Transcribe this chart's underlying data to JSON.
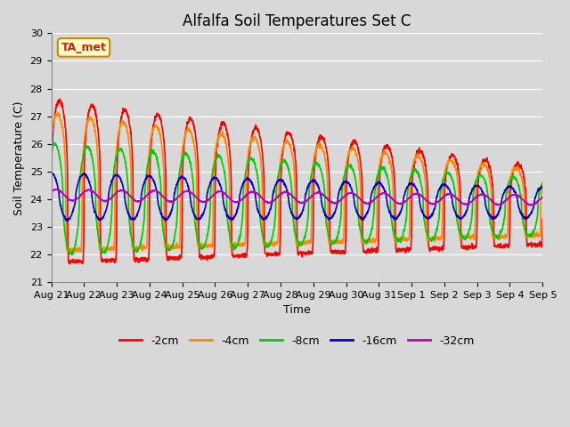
{
  "title": "Alfalfa Soil Temperatures Set C",
  "xlabel": "Time",
  "ylabel": "Soil Temperature (C)",
  "ylim": [
    21.0,
    30.0
  ],
  "yticks": [
    21.0,
    22.0,
    23.0,
    24.0,
    25.0,
    26.0,
    27.0,
    28.0,
    29.0,
    30.0
  ],
  "background_color": "#d8d8d8",
  "plot_bg_color": "#d8d8d8",
  "xtick_labels": [
    "Aug 21",
    "Aug 22",
    "Aug 23",
    "Aug 24",
    "Aug 25",
    "Aug 26",
    "Aug 27",
    "Aug 28",
    "Aug 29",
    "Aug 30",
    "Aug 31",
    "Sep 1",
    "Sep 2",
    "Sep 3",
    "Sep 4",
    "Sep 5"
  ],
  "series_colors": [
    "#ff0000",
    "#ff8800",
    "#00cc00",
    "#0000cc",
    "#bb00bb"
  ],
  "series_labels": [
    "-2cm",
    "-4cm",
    "-8cm",
    "-16cm",
    "-32cm"
  ],
  "line_widths": [
    1.2,
    1.2,
    1.2,
    1.2,
    1.2
  ],
  "annotation_text": "TA_met",
  "annotation_color": "#cc2200",
  "annotation_bg": "#ffffcc",
  "annotation_border": "#cc8800",
  "title_fontsize": 12,
  "axis_label_fontsize": 9,
  "tick_fontsize": 8
}
